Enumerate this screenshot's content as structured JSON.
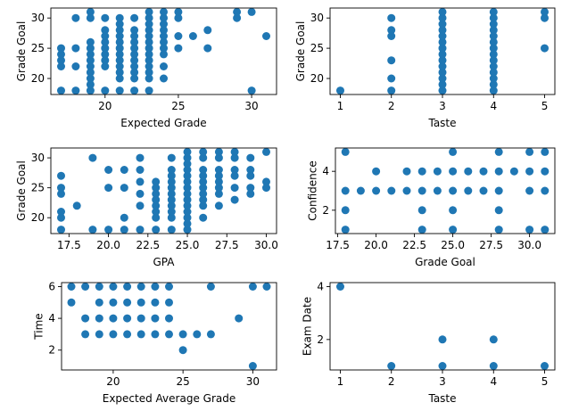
{
  "figure": {
    "marker_color": "#1f77b4"
  },
  "chart_data": [
    {
      "type": "scatter",
      "xlabel": "Expected Grade",
      "ylabel": "Grade Goal",
      "xlim": [
        16.3,
        31.7
      ],
      "ylim": [
        17.35,
        31.65
      ],
      "xticks": [
        20,
        25,
        30
      ],
      "yticks": [
        20,
        25,
        30
      ],
      "points": [
        [
          17,
          18
        ],
        [
          17,
          22
        ],
        [
          17,
          23
        ],
        [
          17,
          24
        ],
        [
          17,
          25
        ],
        [
          18,
          18
        ],
        [
          18,
          22
        ],
        [
          18,
          25
        ],
        [
          18,
          30
        ],
        [
          19,
          18
        ],
        [
          19,
          19
        ],
        [
          19,
          20
        ],
        [
          19,
          21
        ],
        [
          19,
          22
        ],
        [
          19,
          23
        ],
        [
          19,
          24
        ],
        [
          19,
          25
        ],
        [
          19,
          26
        ],
        [
          19,
          30
        ],
        [
          19,
          31
        ],
        [
          20,
          18
        ],
        [
          20,
          22
        ],
        [
          20,
          23
        ],
        [
          20,
          24
        ],
        [
          20,
          25
        ],
        [
          20,
          26
        ],
        [
          20,
          27
        ],
        [
          20,
          28
        ],
        [
          20,
          30
        ],
        [
          21,
          18
        ],
        [
          21,
          20
        ],
        [
          21,
          21
        ],
        [
          21,
          22
        ],
        [
          21,
          23
        ],
        [
          21,
          24
        ],
        [
          21,
          25
        ],
        [
          21,
          26
        ],
        [
          21,
          27
        ],
        [
          21,
          28
        ],
        [
          21,
          29
        ],
        [
          21,
          30
        ],
        [
          22,
          18
        ],
        [
          22,
          20
        ],
        [
          22,
          21
        ],
        [
          22,
          22
        ],
        [
          22,
          23
        ],
        [
          22,
          24
        ],
        [
          22,
          25
        ],
        [
          22,
          26
        ],
        [
          22,
          27
        ],
        [
          22,
          28
        ],
        [
          22,
          30
        ],
        [
          23,
          18
        ],
        [
          23,
          20
        ],
        [
          23,
          21
        ],
        [
          23,
          22
        ],
        [
          23,
          23
        ],
        [
          23,
          24
        ],
        [
          23,
          25
        ],
        [
          23,
          26
        ],
        [
          23,
          27
        ],
        [
          23,
          28
        ],
        [
          23,
          29
        ],
        [
          23,
          30
        ],
        [
          23,
          31
        ],
        [
          24,
          20
        ],
        [
          24,
          22
        ],
        [
          24,
          24
        ],
        [
          24,
          25
        ],
        [
          24,
          26
        ],
        [
          24,
          27
        ],
        [
          24,
          28
        ],
        [
          24,
          29
        ],
        [
          24,
          30
        ],
        [
          24,
          31
        ],
        [
          25,
          25
        ],
        [
          25,
          27
        ],
        [
          25,
          30
        ],
        [
          25,
          31
        ],
        [
          26,
          27
        ],
        [
          27,
          25
        ],
        [
          27,
          28
        ],
        [
          29,
          30
        ],
        [
          29,
          31
        ],
        [
          30,
          18
        ],
        [
          30,
          31
        ],
        [
          31,
          27
        ]
      ]
    },
    {
      "type": "scatter",
      "xlabel": "Taste",
      "ylabel": "Grade Goal",
      "xlim": [
        0.8,
        5.2
      ],
      "ylim": [
        17.35,
        31.65
      ],
      "xticks": [
        1,
        2,
        3,
        4,
        5
      ],
      "yticks": [
        20,
        25,
        30
      ],
      "points": [
        [
          1,
          18
        ],
        [
          2,
          18
        ],
        [
          2,
          20
        ],
        [
          2,
          23
        ],
        [
          2,
          27
        ],
        [
          2,
          28
        ],
        [
          2,
          30
        ],
        [
          3,
          18
        ],
        [
          3,
          19
        ],
        [
          3,
          20
        ],
        [
          3,
          21
        ],
        [
          3,
          22
        ],
        [
          3,
          23
        ],
        [
          3,
          24
        ],
        [
          3,
          25
        ],
        [
          3,
          26
        ],
        [
          3,
          27
        ],
        [
          3,
          28
        ],
        [
          3,
          29
        ],
        [
          3,
          30
        ],
        [
          3,
          31
        ],
        [
          4,
          18
        ],
        [
          4,
          19
        ],
        [
          4,
          20
        ],
        [
          4,
          21
        ],
        [
          4,
          22
        ],
        [
          4,
          23
        ],
        [
          4,
          24
        ],
        [
          4,
          25
        ],
        [
          4,
          26
        ],
        [
          4,
          27
        ],
        [
          4,
          28
        ],
        [
          4,
          29
        ],
        [
          4,
          30
        ],
        [
          4,
          31
        ],
        [
          5,
          25
        ],
        [
          5,
          30
        ],
        [
          5,
          31
        ]
      ]
    },
    {
      "type": "scatter",
      "xlabel": "GPA",
      "ylabel": "Grade Goal",
      "xlim": [
        16.35,
        30.65
      ],
      "ylim": [
        17.35,
        31.65
      ],
      "xticks": [
        17.5,
        20.0,
        22.5,
        25.0,
        27.5,
        30.0
      ],
      "yticks": [
        20,
        25,
        30
      ],
      "points": [
        [
          17,
          18
        ],
        [
          17,
          20
        ],
        [
          17,
          21
        ],
        [
          17,
          24
        ],
        [
          17,
          25
        ],
        [
          17,
          27
        ],
        [
          18,
          22
        ],
        [
          19,
          18
        ],
        [
          19,
          30
        ],
        [
          20,
          18
        ],
        [
          20,
          25
        ],
        [
          20,
          28
        ],
        [
          21,
          18
        ],
        [
          21,
          20
        ],
        [
          21,
          25
        ],
        [
          21,
          28
        ],
        [
          22,
          18
        ],
        [
          22,
          22
        ],
        [
          22,
          24
        ],
        [
          22,
          26
        ],
        [
          22,
          28
        ],
        [
          22,
          30
        ],
        [
          23,
          18
        ],
        [
          23,
          20
        ],
        [
          23,
          21
        ],
        [
          23,
          22
        ],
        [
          23,
          23
        ],
        [
          23,
          24
        ],
        [
          23,
          25
        ],
        [
          23,
          26
        ],
        [
          24,
          18
        ],
        [
          24,
          20
        ],
        [
          24,
          21
        ],
        [
          24,
          22
        ],
        [
          24,
          23
        ],
        [
          24,
          24
        ],
        [
          24,
          25
        ],
        [
          24,
          26
        ],
        [
          24,
          27
        ],
        [
          24,
          28
        ],
        [
          24,
          30
        ],
        [
          25,
          18
        ],
        [
          25,
          19
        ],
        [
          25,
          20
        ],
        [
          25,
          21
        ],
        [
          25,
          22
        ],
        [
          25,
          23
        ],
        [
          25,
          24
        ],
        [
          25,
          25
        ],
        [
          25,
          26
        ],
        [
          25,
          27
        ],
        [
          25,
          28
        ],
        [
          25,
          29
        ],
        [
          25,
          30
        ],
        [
          25,
          31
        ],
        [
          26,
          20
        ],
        [
          26,
          22
        ],
        [
          26,
          23
        ],
        [
          26,
          24
        ],
        [
          26,
          25
        ],
        [
          26,
          26
        ],
        [
          26,
          27
        ],
        [
          26,
          28
        ],
        [
          26,
          30
        ],
        [
          26,
          31
        ],
        [
          27,
          22
        ],
        [
          27,
          24
        ],
        [
          27,
          25
        ],
        [
          27,
          26
        ],
        [
          27,
          27
        ],
        [
          27,
          28
        ],
        [
          27,
          30
        ],
        [
          27,
          31
        ],
        [
          28,
          23
        ],
        [
          28,
          25
        ],
        [
          28,
          27
        ],
        [
          28,
          28
        ],
        [
          28,
          30
        ],
        [
          28,
          31
        ],
        [
          29,
          24
        ],
        [
          29,
          25
        ],
        [
          29,
          27
        ],
        [
          29,
          28
        ],
        [
          29,
          30
        ],
        [
          30,
          25
        ],
        [
          30,
          26
        ],
        [
          30,
          31
        ]
      ]
    },
    {
      "type": "scatter",
      "xlabel": "Grade Goal",
      "ylabel": "Confidence",
      "xlim": [
        17.35,
        31.65
      ],
      "ylim": [
        0.8,
        5.2
      ],
      "xticks": [
        17.5,
        20.0,
        22.5,
        25.0,
        27.5,
        30.0
      ],
      "yticks": [
        2,
        4
      ],
      "points": [
        [
          18,
          1
        ],
        [
          18,
          2
        ],
        [
          18,
          3
        ],
        [
          18,
          5
        ],
        [
          19,
          3
        ],
        [
          20,
          3
        ],
        [
          20,
          4
        ],
        [
          21,
          3
        ],
        [
          22,
          3
        ],
        [
          22,
          4
        ],
        [
          23,
          1
        ],
        [
          23,
          2
        ],
        [
          23,
          3
        ],
        [
          23,
          4
        ],
        [
          24,
          3
        ],
        [
          24,
          4
        ],
        [
          25,
          1
        ],
        [
          25,
          2
        ],
        [
          25,
          3
        ],
        [
          25,
          4
        ],
        [
          25,
          5
        ],
        [
          26,
          3
        ],
        [
          26,
          4
        ],
        [
          27,
          3
        ],
        [
          27,
          4
        ],
        [
          28,
          1
        ],
        [
          28,
          2
        ],
        [
          28,
          3
        ],
        [
          28,
          4
        ],
        [
          28,
          5
        ],
        [
          29,
          4
        ],
        [
          30,
          1
        ],
        [
          30,
          3
        ],
        [
          30,
          4
        ],
        [
          30,
          5
        ],
        [
          31,
          1
        ],
        [
          31,
          3
        ],
        [
          31,
          4
        ],
        [
          31,
          5
        ]
      ]
    },
    {
      "type": "scatter",
      "xlabel": "Expected Average Grade",
      "ylabel": "Time",
      "xlim": [
        16.3,
        31.7
      ],
      "ylim": [
        0.75,
        6.25
      ],
      "xticks": [
        20,
        25,
        30
      ],
      "yticks": [
        2,
        4,
        6
      ],
      "points": [
        [
          17,
          5
        ],
        [
          17,
          6
        ],
        [
          18,
          3
        ],
        [
          18,
          4
        ],
        [
          18,
          6
        ],
        [
          19,
          3
        ],
        [
          19,
          4
        ],
        [
          19,
          5
        ],
        [
          19,
          6
        ],
        [
          20,
          3
        ],
        [
          20,
          4
        ],
        [
          20,
          5
        ],
        [
          20,
          6
        ],
        [
          21,
          3
        ],
        [
          21,
          4
        ],
        [
          21,
          5
        ],
        [
          21,
          6
        ],
        [
          22,
          3
        ],
        [
          22,
          4
        ],
        [
          22,
          5
        ],
        [
          22,
          6
        ],
        [
          23,
          3
        ],
        [
          23,
          4
        ],
        [
          23,
          5
        ],
        [
          23,
          6
        ],
        [
          24,
          3
        ],
        [
          24,
          4
        ],
        [
          24,
          5
        ],
        [
          24,
          6
        ],
        [
          25,
          2
        ],
        [
          25,
          3
        ],
        [
          26,
          3
        ],
        [
          27,
          3
        ],
        [
          27,
          6
        ],
        [
          29,
          4
        ],
        [
          30,
          1
        ],
        [
          30,
          6
        ],
        [
          31,
          6
        ]
      ]
    },
    {
      "type": "scatter",
      "xlabel": "Taste",
      "ylabel": "Exam Date",
      "xlim": [
        0.8,
        5.2
      ],
      "ylim": [
        0.85,
        4.15
      ],
      "xticks": [
        1,
        2,
        3,
        4,
        5
      ],
      "yticks": [
        2,
        4
      ],
      "points": [
        [
          1,
          4
        ],
        [
          2,
          1
        ],
        [
          3,
          1
        ],
        [
          3,
          2
        ],
        [
          4,
          1
        ],
        [
          4,
          2
        ],
        [
          5,
          1
        ]
      ]
    }
  ]
}
